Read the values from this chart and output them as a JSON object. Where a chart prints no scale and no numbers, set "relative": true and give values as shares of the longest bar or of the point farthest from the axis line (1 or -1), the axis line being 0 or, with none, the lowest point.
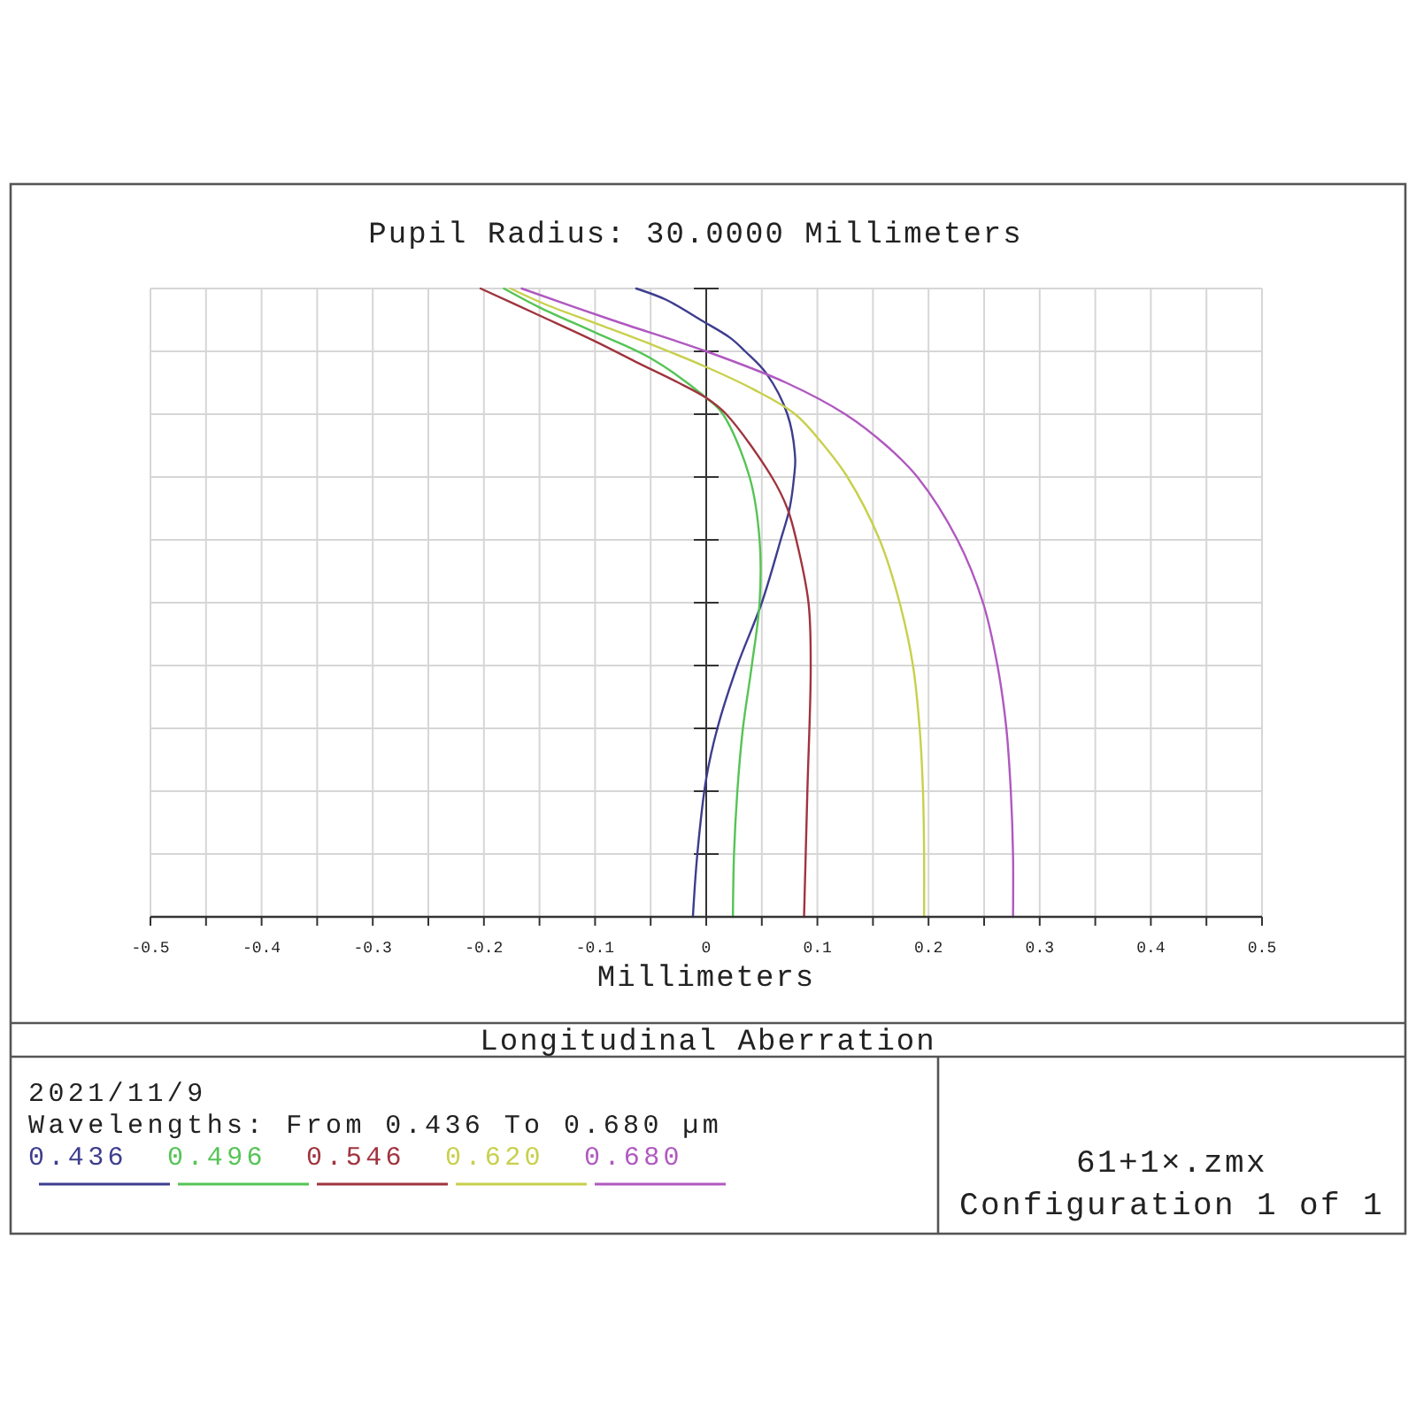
{
  "chart_data": {
    "type": "line",
    "title": "Longitudinal Aberration",
    "ylabel": "Pupil Radius: 30.0000 Millimeters",
    "xlabel": "Millimeters",
    "legend_title": "Wavelengths: From 0.436 To 0.680 µm",
    "annotations": [
      "2021/11/9",
      "61+1×.zmx",
      "Configuration 1 of 1"
    ],
    "relative": true,
    "xlim": [
      -0.5,
      0.5
    ],
    "xticks": [
      -0.5,
      {
        "value": -0.45,
        "label": null
      },
      -0.4,
      {
        "value": -0.35,
        "label": null
      },
      -0.3,
      {
        "value": -0.25,
        "label": null
      },
      -0.2,
      {
        "value": -0.15,
        "label": null
      },
      -0.1,
      {
        "value": -0.05,
        "label": null
      },
      0,
      {
        "value": 0.05,
        "label": null
      },
      0.1,
      {
        "value": 0.15,
        "label": null
      },
      0.2,
      {
        "value": 0.25,
        "label": null
      },
      0.3,
      {
        "value": 0.35,
        "label": null
      },
      0.4,
      {
        "value": 0.45,
        "label": null
      },
      0.5
    ],
    "grid": true,
    "legend": "bottom left",
    "series": [
      {
        "name": "0.436",
        "color": "#3d3d8f",
        "x": [
          -0.012,
          -0.008,
          0,
          0.01,
          0.028,
          0.05,
          0.067,
          0.075,
          0.079,
          0.08,
          0.073,
          0.054,
          0.035,
          0.022,
          -0.004,
          -0.036,
          -0.063
        ],
        "values": [
          0,
          0.1,
          0.22,
          0.3,
          0.4,
          0.5,
          0.6,
          0.65,
          0.7,
          0.73,
          0.8,
          0.865,
          0.9,
          0.921,
          0.949,
          0.982,
          1
        ]
      },
      {
        "name": "0.496",
        "color": "#55c455",
        "x": [
          0.024,
          0.025,
          0.028,
          0.033,
          0.041,
          0.048,
          0.048,
          0.039,
          0.015,
          0,
          -0.05,
          -0.1,
          -0.15,
          -0.182
        ],
        "values": [
          0,
          0.1,
          0.2,
          0.3,
          0.4,
          0.5,
          0.6,
          0.7,
          0.8,
          0.826,
          0.889,
          0.93,
          0.97,
          1
        ]
      },
      {
        "name": "0.546",
        "color": "#a0343e",
        "x": [
          0.088,
          0.091,
          0.094,
          0.092,
          0.081,
          0.073,
          0.059,
          0.018,
          0,
          -0.026,
          -0.063,
          -0.1,
          -0.15,
          -0.203
        ],
        "values": [
          0,
          0.2,
          0.4,
          0.5,
          0.6,
          0.65,
          0.7,
          0.8,
          0.826,
          0.851,
          0.883,
          0.916,
          0.957,
          1
        ]
      },
      {
        "name": "0.620",
        "color": "#c8d04c",
        "x": [
          0.196,
          0.196,
          0.195,
          0.192,
          0.186,
          0.174,
          0.156,
          0.127,
          0.106,
          0.08,
          0.042,
          0,
          -0.048,
          -0.1,
          -0.145,
          -0.176
        ],
        "values": [
          0,
          0.1,
          0.2,
          0.3,
          0.4,
          0.5,
          0.6,
          0.7,
          0.75,
          0.8,
          0.84,
          0.875,
          0.91,
          0.945,
          0.975,
          1
        ]
      },
      {
        "name": "0.680",
        "color": "#b058c0",
        "x": [
          0.276,
          0.276,
          0.274,
          0.27,
          0.262,
          0.249,
          0.226,
          0.19,
          0.162,
          0.125,
          0.072,
          0,
          -0.085,
          -0.166
        ],
        "values": [
          0,
          0.1,
          0.2,
          0.3,
          0.4,
          0.5,
          0.6,
          0.7,
          0.75,
          0.8,
          0.85,
          0.9,
          0.95,
          1
        ]
      }
    ]
  }
}
